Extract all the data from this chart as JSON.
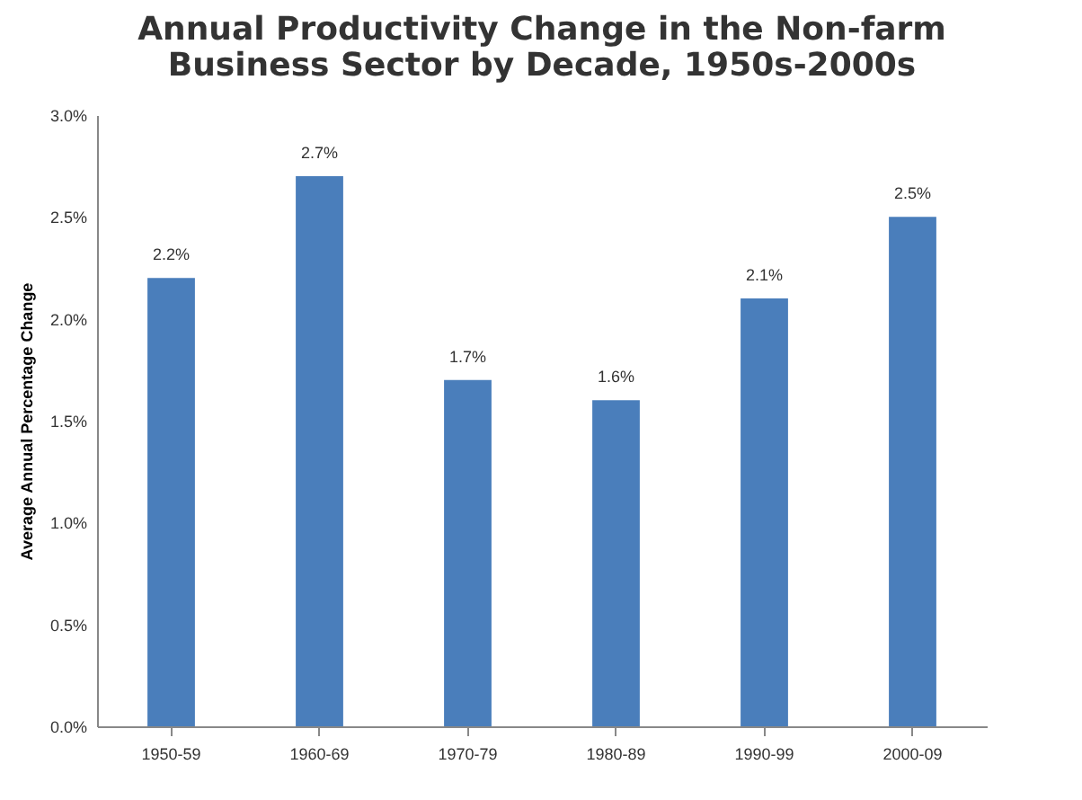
{
  "chart_data": {
    "type": "bar",
    "title": "Annual Productivity Change in the Non-farm Business Sector by Decade, 1950s-2000s",
    "ylabel": "Average Annual Percentage Change",
    "categories": [
      "1950-59",
      "1960-69",
      "1970-79",
      "1980-89",
      "1990-99",
      "2000-09"
    ],
    "values": [
      2.2,
      2.7,
      1.7,
      1.6,
      2.1,
      2.5
    ],
    "value_labels": [
      "2.2%",
      "2.7%",
      "1.7%",
      "1.6%",
      "2.1%",
      "2.5%"
    ],
    "color": "#4a7ebb",
    "ylim": [
      0,
      3
    ],
    "yticks": [
      {
        "value": 0,
        "label": "0.0%"
      },
      {
        "value": 0.5,
        "label": "0.5%"
      },
      {
        "value": 1,
        "label": "1.0%"
      },
      {
        "value": 1.5,
        "label": "1.5%"
      },
      {
        "value": 2,
        "label": "2.0%"
      },
      {
        "value": 2.5,
        "label": "2.5%"
      },
      {
        "value": 3,
        "label": "3.0%"
      }
    ],
    "grid": false
  }
}
